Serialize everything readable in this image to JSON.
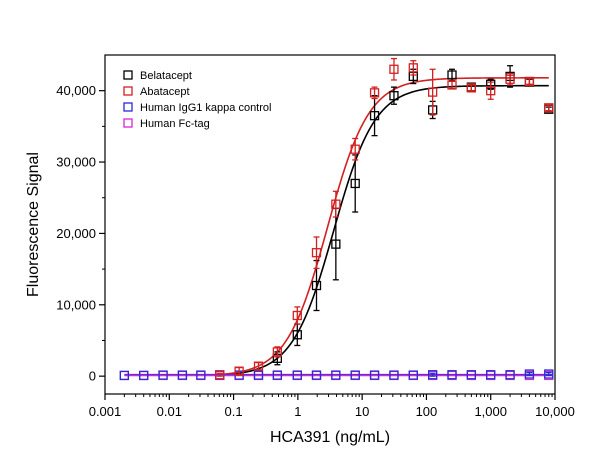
{
  "chart_data": {
    "type": "scatter",
    "xlabel": "HCA391 (ng/mL)",
    "ylabel": "Fluorescence Signal",
    "x_scale": "log",
    "xlim": [
      0.001,
      10000
    ],
    "ylim": [
      -2500,
      45000
    ],
    "x_ticks": [
      {
        "value": 0.001,
        "label": "0.001"
      },
      {
        "value": 0.01,
        "label": "0.01"
      },
      {
        "value": 0.1,
        "label": "0.1"
      },
      {
        "value": 1,
        "label": "1"
      },
      {
        "value": 10,
        "label": "10"
      },
      {
        "value": 100,
        "label": "100"
      },
      {
        "value": 1000,
        "label": "1,000"
      },
      {
        "value": 10000,
        "label": "10,000"
      }
    ],
    "y_ticks": [
      {
        "value": 0,
        "label": "0"
      },
      {
        "value": 10000,
        "label": "10,000"
      },
      {
        "value": 20000,
        "label": "20,000"
      },
      {
        "value": 30000,
        "label": "30,000"
      },
      {
        "value": 40000,
        "label": "40,000"
      }
    ],
    "grid": false,
    "legend_position": "top-left",
    "series": [
      {
        "name": "Belatacept",
        "color": "#000000",
        "fit_curve": {
          "bottom": 0,
          "top": 40700,
          "ec50": 3.6,
          "hill": 1.35
        },
        "points": [
          {
            "x": 0.48,
            "y": 2500,
            "err": 900
          },
          {
            "x": 0.98,
            "y": 5800,
            "err": 1500
          },
          {
            "x": 1.95,
            "y": 12700,
            "err": 3500
          },
          {
            "x": 3.9,
            "y": 18500,
            "err": 5000
          },
          {
            "x": 7.8,
            "y": 27000,
            "err": 4000
          },
          {
            "x": 15.6,
            "y": 36500,
            "err": 2800
          },
          {
            "x": 31.25,
            "y": 39300,
            "err": 1200
          },
          {
            "x": 62.5,
            "y": 42000,
            "err": 1000
          },
          {
            "x": 125,
            "y": 37300,
            "err": 1200
          },
          {
            "x": 250,
            "y": 42200,
            "err": 800
          },
          {
            "x": 500,
            "y": 40500,
            "err": 500
          },
          {
            "x": 1000,
            "y": 40900,
            "err": 700
          },
          {
            "x": 2000,
            "y": 42000,
            "err": 1500
          },
          {
            "x": 4000,
            "y": 41200,
            "err": 400
          },
          {
            "x": 8000,
            "y": 37400,
            "err": 300
          }
        ]
      },
      {
        "name": "Abatacept",
        "color": "#d42020",
        "fit_curve": {
          "bottom": 0,
          "top": 41800,
          "ec50": 2.9,
          "hill": 1.35
        },
        "points": [
          {
            "x": 0.061,
            "y": 200,
            "err": 200
          },
          {
            "x": 0.122,
            "y": 700,
            "err": 500
          },
          {
            "x": 0.244,
            "y": 1400,
            "err": 500
          },
          {
            "x": 0.48,
            "y": 3400,
            "err": 700
          },
          {
            "x": 0.98,
            "y": 8500,
            "err": 1200
          },
          {
            "x": 1.95,
            "y": 17300,
            "err": 2200
          },
          {
            "x": 3.9,
            "y": 24100,
            "err": 1800
          },
          {
            "x": 7.8,
            "y": 31800,
            "err": 1500
          },
          {
            "x": 15.6,
            "y": 39700,
            "err": 800
          },
          {
            "x": 31.25,
            "y": 43000,
            "err": 1500
          },
          {
            "x": 62.5,
            "y": 43200,
            "err": 1000
          },
          {
            "x": 125,
            "y": 39800,
            "err": 3200
          },
          {
            "x": 250,
            "y": 40800,
            "err": 500
          },
          {
            "x": 500,
            "y": 40400,
            "err": 400
          },
          {
            "x": 1000,
            "y": 40000,
            "err": 1200
          },
          {
            "x": 2000,
            "y": 41600,
            "err": 800
          },
          {
            "x": 4000,
            "y": 41300,
            "err": 400
          },
          {
            "x": 8000,
            "y": 37600,
            "err": 400
          }
        ]
      },
      {
        "name": "Human IgG1 kappa control",
        "color": "#2a2ad4",
        "fit_curve": {
          "bottom": 200,
          "top": 200,
          "ec50": 1,
          "hill": 1
        },
        "points": [
          {
            "x": 0.002,
            "y": 100,
            "err": 0
          },
          {
            "x": 0.004,
            "y": 100,
            "err": 0
          },
          {
            "x": 0.008,
            "y": 150,
            "err": 0
          },
          {
            "x": 0.016,
            "y": 150,
            "err": 0
          },
          {
            "x": 0.031,
            "y": 150,
            "err": 0
          },
          {
            "x": 0.061,
            "y": 150,
            "err": 0
          },
          {
            "x": 0.122,
            "y": 150,
            "err": 0
          },
          {
            "x": 0.244,
            "y": 150,
            "err": 0
          },
          {
            "x": 0.48,
            "y": 150,
            "err": 0
          },
          {
            "x": 0.98,
            "y": 150,
            "err": 0
          },
          {
            "x": 1.95,
            "y": 150,
            "err": 0
          },
          {
            "x": 3.9,
            "y": 150,
            "err": 0
          },
          {
            "x": 7.8,
            "y": 150,
            "err": 0
          },
          {
            "x": 15.6,
            "y": 150,
            "err": 0
          },
          {
            "x": 31.25,
            "y": 150,
            "err": 0
          },
          {
            "x": 62.5,
            "y": 150,
            "err": 0
          },
          {
            "x": 125,
            "y": 200,
            "err": 200
          },
          {
            "x": 250,
            "y": 200,
            "err": 0
          },
          {
            "x": 500,
            "y": 200,
            "err": 0
          },
          {
            "x": 1000,
            "y": 200,
            "err": 0
          },
          {
            "x": 2000,
            "y": 200,
            "err": 0
          },
          {
            "x": 4000,
            "y": 300,
            "err": 200
          },
          {
            "x": 8000,
            "y": 300,
            "err": 200
          }
        ]
      },
      {
        "name": "Human Fc-tag",
        "color": "#d22ad2",
        "fit_curve": {
          "bottom": 100,
          "top": 100,
          "ec50": 1,
          "hill": 1
        },
        "points": [
          {
            "x": 0.002,
            "y": 100,
            "err": 0
          },
          {
            "x": 0.004,
            "y": 100,
            "err": 0
          },
          {
            "x": 0.008,
            "y": 100,
            "err": 0
          },
          {
            "x": 0.016,
            "y": 100,
            "err": 0
          },
          {
            "x": 0.031,
            "y": 100,
            "err": 0
          },
          {
            "x": 0.061,
            "y": 100,
            "err": 0
          },
          {
            "x": 0.122,
            "y": 100,
            "err": 0
          },
          {
            "x": 0.244,
            "y": 100,
            "err": 0
          },
          {
            "x": 0.48,
            "y": 100,
            "err": 0
          },
          {
            "x": 0.98,
            "y": 100,
            "err": 0
          },
          {
            "x": 1.95,
            "y": 100,
            "err": 0
          },
          {
            "x": 3.9,
            "y": 100,
            "err": 0
          },
          {
            "x": 7.8,
            "y": 100,
            "err": 0
          },
          {
            "x": 15.6,
            "y": 100,
            "err": 0
          },
          {
            "x": 31.25,
            "y": 100,
            "err": 0
          },
          {
            "x": 62.5,
            "y": 100,
            "err": 0
          },
          {
            "x": 125,
            "y": 100,
            "err": 0
          },
          {
            "x": 250,
            "y": 100,
            "err": 0
          },
          {
            "x": 500,
            "y": 100,
            "err": 0
          },
          {
            "x": 1000,
            "y": 100,
            "err": 0
          },
          {
            "x": 2000,
            "y": 100,
            "err": 0
          },
          {
            "x": 4000,
            "y": 100,
            "err": 0
          },
          {
            "x": 8000,
            "y": 100,
            "err": 0
          }
        ]
      }
    ]
  }
}
